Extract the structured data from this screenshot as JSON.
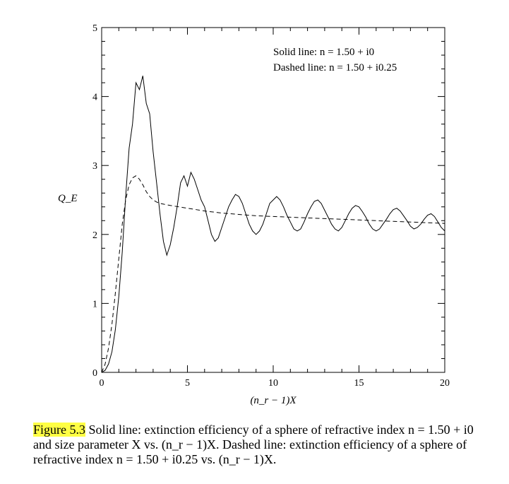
{
  "chart_data": {
    "type": "line",
    "xlabel": "(n_r − 1)X",
    "ylabel": "Q_E",
    "xlim": [
      0,
      20
    ],
    "ylim": [
      0,
      5
    ],
    "x_ticks": [
      0,
      5,
      10,
      15,
      20
    ],
    "y_ticks": [
      0,
      1,
      2,
      3,
      4,
      5
    ],
    "grid": false,
    "legend": {
      "placement": "top-right",
      "entries": [
        {
          "style": "solid",
          "text": "Solid line: n = 1.50 + i0"
        },
        {
          "style": "dashed",
          "text": "Dashed line: n = 1.50 + i0.25"
        }
      ]
    },
    "series": [
      {
        "style": "solid",
        "x": [
          0.0,
          0.2,
          0.4,
          0.6,
          0.8,
          1.0,
          1.2,
          1.4,
          1.6,
          1.8,
          2.0,
          2.2,
          2.4,
          2.6,
          2.8,
          3.0,
          3.2,
          3.4,
          3.6,
          3.8,
          4.0,
          4.2,
          4.4,
          4.6,
          4.8,
          5.0,
          5.2,
          5.4,
          5.6,
          5.8,
          6.0,
          6.2,
          6.4,
          6.6,
          6.8,
          7.0,
          7.2,
          7.4,
          7.6,
          7.8,
          8.0,
          8.2,
          8.4,
          8.6,
          8.8,
          9.0,
          9.2,
          9.4,
          9.6,
          9.8,
          10.0,
          10.2,
          10.4,
          10.6,
          10.8,
          11.0,
          11.2,
          11.4,
          11.6,
          11.8,
          12.0,
          12.2,
          12.4,
          12.6,
          12.8,
          13.0,
          13.2,
          13.4,
          13.6,
          13.8,
          14.0,
          14.2,
          14.4,
          14.6,
          14.8,
          15.0,
          15.2,
          15.4,
          15.6,
          15.8,
          16.0,
          16.2,
          16.4,
          16.6,
          16.8,
          17.0,
          17.2,
          17.4,
          17.6,
          17.8,
          18.0,
          18.2,
          18.4,
          18.6,
          18.8,
          19.0,
          19.2,
          19.4,
          19.6,
          19.8,
          20.0
        ],
        "y": [
          0.0,
          0.03,
          0.12,
          0.3,
          0.62,
          1.1,
          1.75,
          2.55,
          3.25,
          3.6,
          4.2,
          4.1,
          4.3,
          3.9,
          3.75,
          3.2,
          2.75,
          2.3,
          1.9,
          1.7,
          1.85,
          2.1,
          2.4,
          2.75,
          2.85,
          2.7,
          2.9,
          2.8,
          2.65,
          2.5,
          2.4,
          2.2,
          2.0,
          1.9,
          1.95,
          2.1,
          2.25,
          2.4,
          2.5,
          2.58,
          2.55,
          2.45,
          2.3,
          2.15,
          2.05,
          2.0,
          2.05,
          2.15,
          2.3,
          2.45,
          2.5,
          2.55,
          2.5,
          2.4,
          2.28,
          2.18,
          2.08,
          2.05,
          2.08,
          2.18,
          2.3,
          2.4,
          2.48,
          2.5,
          2.45,
          2.35,
          2.25,
          2.15,
          2.08,
          2.05,
          2.1,
          2.2,
          2.3,
          2.38,
          2.42,
          2.4,
          2.33,
          2.25,
          2.15,
          2.08,
          2.05,
          2.08,
          2.15,
          2.22,
          2.3,
          2.36,
          2.38,
          2.34,
          2.27,
          2.2,
          2.12,
          2.08,
          2.1,
          2.15,
          2.22,
          2.28,
          2.3,
          2.26,
          2.18,
          2.1,
          2.05
        ]
      },
      {
        "style": "dashed",
        "x": [
          0.0,
          0.2,
          0.4,
          0.6,
          0.8,
          1.0,
          1.2,
          1.4,
          1.6,
          1.8,
          2.0,
          2.2,
          2.4,
          2.6,
          2.8,
          3.0,
          3.2,
          3.4,
          3.6,
          3.8,
          4.0,
          5.0,
          6.0,
          7.0,
          8.0,
          9.0,
          10.0,
          11.0,
          12.0,
          13.0,
          14.0,
          15.0,
          16.0,
          17.0,
          18.0,
          19.0,
          20.0
        ],
        "y": [
          0.0,
          0.12,
          0.35,
          0.7,
          1.15,
          1.65,
          2.15,
          2.5,
          2.72,
          2.82,
          2.85,
          2.8,
          2.72,
          2.62,
          2.55,
          2.5,
          2.47,
          2.45,
          2.44,
          2.43,
          2.42,
          2.38,
          2.34,
          2.31,
          2.29,
          2.27,
          2.26,
          2.25,
          2.24,
          2.23,
          2.22,
          2.21,
          2.2,
          2.19,
          2.18,
          2.17,
          2.16
        ]
      }
    ]
  },
  "caption": {
    "figure_number": "Figure 5.3",
    "text": " Solid line: extinction efficiency of a sphere of refractive index n = 1.50 + i0 and size parameter X vs. (n_r − 1)X. Dashed line: extinction efficiency of a sphere of refractive index n = 1.50 + i0.25 vs. (n_r − 1)X."
  }
}
